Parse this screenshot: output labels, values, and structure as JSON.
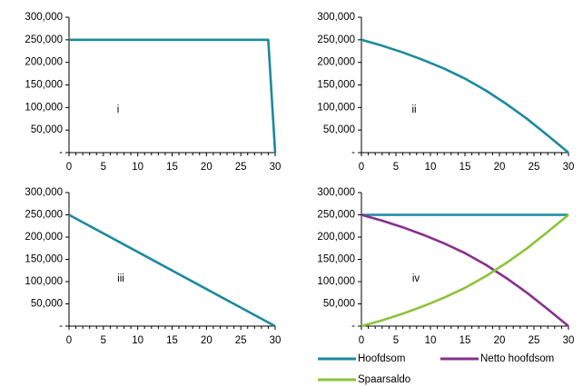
{
  "colors": {
    "hoofdsom": "#1b8a9e",
    "netto": "#86308e",
    "spaarsaldo": "#8cc43a",
    "axis": "#000000"
  },
  "y_tick_labels": [
    "-",
    "50,000",
    "100,000",
    "150,000",
    "200,000",
    "250,000",
    "300,000"
  ],
  "x_tick_labels": [
    "0",
    "5",
    "10",
    "15",
    "20",
    "25",
    "30"
  ],
  "chart_data": [
    {
      "type": "line",
      "panel_label": "i",
      "xlim": [
        0,
        30
      ],
      "ylim": [
        0,
        300000
      ],
      "series": [
        {
          "key": "hoofdsom",
          "x": [
            0,
            29,
            30
          ],
          "y": [
            250000,
            250000,
            0
          ]
        }
      ]
    },
    {
      "type": "line",
      "panel_label": "ii",
      "xlim": [
        0,
        30
      ],
      "ylim": [
        0,
        300000
      ],
      "series": [
        {
          "key": "hoofdsom",
          "x": [
            0,
            3,
            6,
            9,
            12,
            15,
            18,
            21,
            24,
            27,
            30
          ],
          "y": [
            250000,
            237000,
            222000,
            205000,
            186000,
            164000,
            138000,
            108000,
            75000,
            38000,
            0
          ]
        }
      ]
    },
    {
      "type": "line",
      "panel_label": "iii",
      "xlim": [
        0,
        30
      ],
      "ylim": [
        0,
        300000
      ],
      "series": [
        {
          "key": "hoofdsom",
          "x": [
            0,
            30
          ],
          "y": [
            250000,
            0
          ]
        }
      ]
    },
    {
      "type": "line",
      "panel_label": "iv",
      "xlim": [
        0,
        30
      ],
      "ylim": [
        0,
        300000
      ],
      "series": [
        {
          "key": "hoofdsom",
          "name": "Hoofdsom",
          "x": [
            0,
            30
          ],
          "y": [
            250000,
            250000
          ]
        },
        {
          "key": "netto",
          "name": "Netto hoofdsom",
          "x": [
            0,
            3,
            6,
            9,
            12,
            15,
            18,
            21,
            24,
            27,
            30
          ],
          "y": [
            250000,
            237000,
            222000,
            205000,
            186000,
            164000,
            138000,
            108000,
            75000,
            38000,
            0
          ]
        },
        {
          "key": "spaarsaldo",
          "name": "Spaarsaldo",
          "x": [
            0,
            3,
            6,
            9,
            12,
            15,
            18,
            21,
            24,
            27,
            30
          ],
          "y": [
            0,
            13000,
            28000,
            45000,
            64000,
            86000,
            112000,
            142000,
            175000,
            212000,
            250000
          ]
        }
      ]
    }
  ],
  "legend": [
    {
      "key": "hoofdsom",
      "label": "Hoofdsom"
    },
    {
      "key": "netto",
      "label": "Netto hoofdsom"
    },
    {
      "key": "spaarsaldo",
      "label": "Spaarsaldo"
    }
  ]
}
